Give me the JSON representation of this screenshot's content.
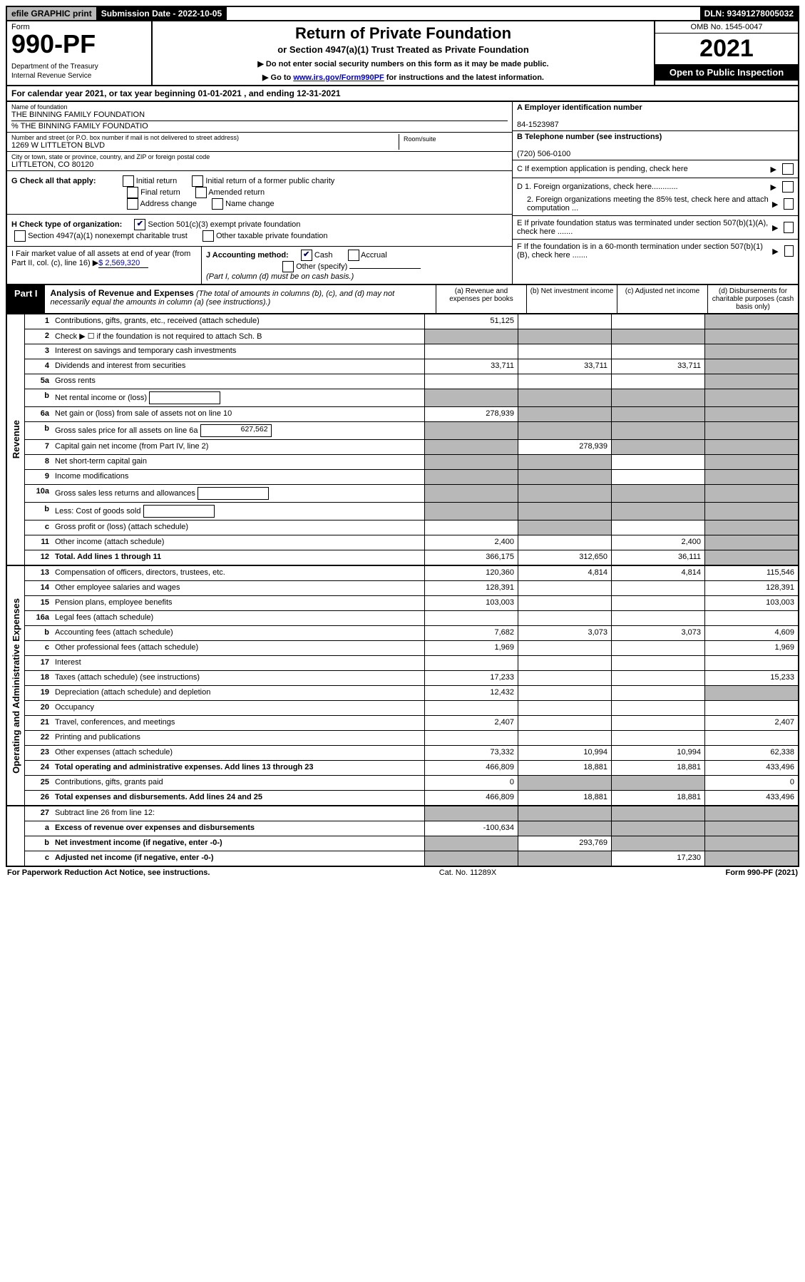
{
  "topbar": {
    "efile_prefix": "efile",
    "efile_graphic": "GRAPHIC",
    "efile_print": "print",
    "submission_label": "Submission Date - 2022-10-05",
    "dln": "DLN: 93491278005032"
  },
  "titleblock": {
    "form_word": "Form",
    "form_no": "990-PF",
    "dept": "Department of the Treasury\nInternal Revenue Service",
    "h1": "Return of Private Foundation",
    "h2": "or Section 4947(a)(1) Trust Treated as Private Foundation",
    "note1": "▶ Do not enter social security numbers on this form as it may be made public.",
    "note2_pre": "▶ Go to ",
    "note2_link": "www.irs.gov/Form990PF",
    "note2_post": " for instructions and the latest information.",
    "omb": "OMB No. 1545-0047",
    "year": "2021",
    "open": "Open to Public Inspection"
  },
  "calyear": "For calendar year 2021, or tax year beginning 01-01-2021          , and ending 12-31-2021",
  "entity": {
    "name_lbl": "Name of foundation",
    "name": "THE BINNING FAMILY FOUNDATION",
    "careof": "% THE BINNING FAMILY FOUNDATIO",
    "addr_lbl": "Number and street (or P.O. box number if mail is not delivered to street address)",
    "addr": "1269 W LITTLETON BLVD",
    "room_lbl": "Room/suite",
    "city_lbl": "City or town, state or province, country, and ZIP or foreign postal code",
    "city": "LITTLETON, CO  80120",
    "ein_lbl": "A Employer identification number",
    "ein": "84-1523987",
    "tel_lbl": "B Telephone number (see instructions)",
    "tel": "(720) 506-0100",
    "C": "C If exemption application is pending, check here",
    "D1": "D 1. Foreign organizations, check here............",
    "D2": "2. Foreign organizations meeting the 85% test, check here and attach computation ...",
    "E": "E  If private foundation status was terminated under section 507(b)(1)(A), check here .......",
    "F": "F  If the foundation is in a 60-month termination under section 507(b)(1)(B), check here .......",
    "G_lbl": "G Check all that apply:",
    "G_opts": [
      "Initial return",
      "Initial return of a former public charity",
      "Final return",
      "Amended return",
      "Address change",
      "Name change"
    ],
    "H_lbl": "H Check type of organization:",
    "H_opts": [
      "Section 501(c)(3) exempt private foundation",
      "Section 4947(a)(1) nonexempt charitable trust",
      "Other taxable private foundation"
    ],
    "H_checked_idx": 0,
    "I_lbl": "I Fair market value of all assets at end of year (from Part II, col. (c), line 16)",
    "I_val": "$ 2,569,320",
    "J_lbl": "J Accounting method:",
    "J_opts": [
      "Cash",
      "Accrual",
      "Other (specify)"
    ],
    "J_checked_idx": 0,
    "J_note": "(Part I, column (d) must be on cash basis.)"
  },
  "part1": {
    "tag": "Part I",
    "title": "Analysis of Revenue and Expenses",
    "title_note": "(The total of amounts in columns (b), (c), and (d) may not necessarily equal the amounts in column (a) (see instructions).)",
    "cols": {
      "a": "(a)   Revenue and expenses per books",
      "b": "(b)   Net investment income",
      "c": "(c)   Adjusted net income",
      "d": "(d)   Disbursements for charitable purposes (cash basis only)"
    }
  },
  "rows": [
    {
      "n": "1",
      "lbl": "Contributions, gifts, grants, etc., received (attach schedule)",
      "a": "51,125",
      "b": "",
      "c": "",
      "d": "",
      "dshade": true
    },
    {
      "n": "2",
      "lbl": "Check ▶ ☐ if the foundation is not required to attach Sch. B",
      "a": "shade",
      "b": "shade",
      "c": "shade",
      "d": "shade"
    },
    {
      "n": "3",
      "lbl": "Interest on savings and temporary cash investments",
      "a": "",
      "b": "",
      "c": "",
      "d": "shade"
    },
    {
      "n": "4",
      "lbl": "Dividends and interest from securities",
      "a": "33,711",
      "b": "33,711",
      "c": "33,711",
      "d": "shade"
    },
    {
      "n": "5a",
      "lbl": "Gross rents",
      "a": "",
      "b": "",
      "c": "",
      "d": "shade"
    },
    {
      "n": "b",
      "lbl": "Net rental income or (loss)",
      "box": "",
      "a": "shade",
      "b": "shade",
      "c": "shade",
      "d": "shade"
    },
    {
      "n": "6a",
      "lbl": "Net gain or (loss) from sale of assets not on line 10",
      "a": "278,939",
      "b": "shade",
      "c": "shade",
      "d": "shade"
    },
    {
      "n": "b",
      "lbl": "Gross sales price for all assets on line 6a",
      "box": "627,562",
      "a": "shade",
      "b": "shade",
      "c": "shade",
      "d": "shade"
    },
    {
      "n": "7",
      "lbl": "Capital gain net income (from Part IV, line 2)",
      "a": "shade",
      "b": "278,939",
      "c": "shade",
      "d": "shade"
    },
    {
      "n": "8",
      "lbl": "Net short-term capital gain",
      "a": "shade",
      "b": "shade",
      "c": "",
      "d": "shade"
    },
    {
      "n": "9",
      "lbl": "Income modifications",
      "a": "shade",
      "b": "shade",
      "c": "",
      "d": "shade"
    },
    {
      "n": "10a",
      "lbl": "Gross sales less returns and allowances",
      "box": "",
      "a": "shade",
      "b": "shade",
      "c": "shade",
      "d": "shade"
    },
    {
      "n": "b",
      "lbl": "Less: Cost of goods sold",
      "box": "",
      "a": "shade",
      "b": "shade",
      "c": "shade",
      "d": "shade"
    },
    {
      "n": "c",
      "lbl": "Gross profit or (loss) (attach schedule)",
      "a": "",
      "b": "shade",
      "c": "",
      "d": "shade"
    },
    {
      "n": "11",
      "lbl": "Other income (attach schedule)",
      "a": "2,400",
      "b": "",
      "c": "2,400",
      "d": "shade"
    },
    {
      "n": "12",
      "lbl": "Total. Add lines 1 through 11",
      "bold": true,
      "a": "366,175",
      "b": "312,650",
      "c": "36,111",
      "d": "shade"
    }
  ],
  "exp_rows": [
    {
      "n": "13",
      "lbl": "Compensation of officers, directors, trustees, etc.",
      "a": "120,360",
      "b": "4,814",
      "c": "4,814",
      "d": "115,546"
    },
    {
      "n": "14",
      "lbl": "Other employee salaries and wages",
      "a": "128,391",
      "b": "",
      "c": "",
      "d": "128,391"
    },
    {
      "n": "15",
      "lbl": "Pension plans, employee benefits",
      "a": "103,003",
      "b": "",
      "c": "",
      "d": "103,003"
    },
    {
      "n": "16a",
      "lbl": "Legal fees (attach schedule)",
      "a": "",
      "b": "",
      "c": "",
      "d": ""
    },
    {
      "n": "b",
      "lbl": "Accounting fees (attach schedule)",
      "a": "7,682",
      "b": "3,073",
      "c": "3,073",
      "d": "4,609"
    },
    {
      "n": "c",
      "lbl": "Other professional fees (attach schedule)",
      "a": "1,969",
      "b": "",
      "c": "",
      "d": "1,969"
    },
    {
      "n": "17",
      "lbl": "Interest",
      "a": "",
      "b": "",
      "c": "",
      "d": ""
    },
    {
      "n": "18",
      "lbl": "Taxes (attach schedule) (see instructions)",
      "a": "17,233",
      "b": "",
      "c": "",
      "d": "15,233"
    },
    {
      "n": "19",
      "lbl": "Depreciation (attach schedule) and depletion",
      "a": "12,432",
      "b": "",
      "c": "",
      "d": "shade"
    },
    {
      "n": "20",
      "lbl": "Occupancy",
      "a": "",
      "b": "",
      "c": "",
      "d": ""
    },
    {
      "n": "21",
      "lbl": "Travel, conferences, and meetings",
      "a": "2,407",
      "b": "",
      "c": "",
      "d": "2,407"
    },
    {
      "n": "22",
      "lbl": "Printing and publications",
      "a": "",
      "b": "",
      "c": "",
      "d": ""
    },
    {
      "n": "23",
      "lbl": "Other expenses (attach schedule)",
      "a": "73,332",
      "b": "10,994",
      "c": "10,994",
      "d": "62,338"
    },
    {
      "n": "24",
      "lbl": "Total operating and administrative expenses. Add lines 13 through 23",
      "bold": true,
      "a": "466,809",
      "b": "18,881",
      "c": "18,881",
      "d": "433,496"
    },
    {
      "n": "25",
      "lbl": "Contributions, gifts, grants paid",
      "a": "0",
      "b": "shade",
      "c": "shade",
      "d": "0"
    },
    {
      "n": "26",
      "lbl": "Total expenses and disbursements. Add lines 24 and 25",
      "bold": true,
      "a": "466,809",
      "b": "18,881",
      "c": "18,881",
      "d": "433,496"
    }
  ],
  "sub_rows": [
    {
      "n": "27",
      "lbl": "Subtract line 26 from line 12:",
      "a": "shade",
      "b": "shade",
      "c": "shade",
      "d": "shade"
    },
    {
      "n": "a",
      "lbl": "Excess of revenue over expenses and disbursements",
      "bold": true,
      "a": "-100,634",
      "b": "shade",
      "c": "shade",
      "d": "shade"
    },
    {
      "n": "b",
      "lbl": "Net investment income (if negative, enter -0-)",
      "bold": true,
      "a": "shade",
      "b": "293,769",
      "c": "shade",
      "d": "shade"
    },
    {
      "n": "c",
      "lbl": "Adjusted net income (if negative, enter -0-)",
      "bold": true,
      "a": "shade",
      "b": "shade",
      "c": "17,230",
      "d": "shade"
    }
  ],
  "sidelabels": {
    "rev": "Revenue",
    "exp": "Operating and Administrative Expenses"
  },
  "footer": {
    "left": "For Paperwork Reduction Act Notice, see instructions.",
    "mid": "Cat. No. 11289X",
    "right": "Form 990-PF (2021)"
  },
  "style": {
    "shade_color": "#b8b8b8",
    "link_color": "#0000cc",
    "border_color": "#000000",
    "bg_color": "#ffffff"
  }
}
